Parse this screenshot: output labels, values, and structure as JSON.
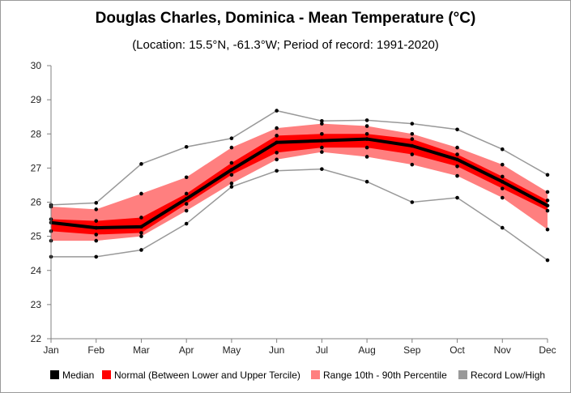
{
  "chart_data": {
    "type": "line",
    "title": "Douglas Charles, Dominica - Mean Temperature (°C)",
    "subtitle": "(Location: 15.5°N, -61.3°W; Period of record: 1991-2020)",
    "categories": [
      "Jan",
      "Feb",
      "Mar",
      "Apr",
      "May",
      "Jun",
      "Jul",
      "Aug",
      "Sep",
      "Oct",
      "Nov",
      "Dec"
    ],
    "ylim": [
      22,
      30
    ],
    "yticks": [
      22,
      23,
      24,
      25,
      26,
      27,
      28,
      29,
      30
    ],
    "grid": false,
    "legend_position": "bottom",
    "series": [
      {
        "name": "Median",
        "color": "#000000",
        "values": [
          25.4,
          25.25,
          25.28,
          26.1,
          26.95,
          27.75,
          27.8,
          27.85,
          27.65,
          27.25,
          26.6,
          25.9
        ]
      },
      {
        "name": "Normal (Between Lower and Upper Tercile)",
        "color": "#ff0000",
        "lower": [
          25.15,
          25.05,
          25.1,
          25.95,
          26.8,
          27.45,
          27.6,
          27.6,
          27.4,
          27.05,
          26.4,
          25.75
        ],
        "upper": [
          25.5,
          25.45,
          25.55,
          26.25,
          27.15,
          27.95,
          28.0,
          28.0,
          27.85,
          27.4,
          26.75,
          26.05
        ]
      },
      {
        "name": "Range 10th - 90th Percentile",
        "color": "#ff7f7f",
        "lower": [
          24.87,
          24.87,
          25.0,
          25.75,
          26.55,
          27.25,
          27.47,
          27.33,
          27.1,
          26.77,
          26.13,
          25.2
        ],
        "upper": [
          25.87,
          25.79,
          26.25,
          26.73,
          27.6,
          28.17,
          28.3,
          28.23,
          28.0,
          27.6,
          27.1,
          26.3
        ]
      },
      {
        "name": "Record Low/High",
        "color": "#999999",
        "low": [
          24.4,
          24.4,
          24.6,
          25.37,
          26.45,
          26.92,
          26.97,
          26.6,
          26.0,
          26.13,
          25.25,
          24.3
        ],
        "high": [
          25.92,
          25.98,
          27.12,
          27.62,
          27.87,
          28.68,
          28.38,
          28.4,
          28.3,
          28.13,
          27.55,
          26.8
        ]
      }
    ]
  }
}
